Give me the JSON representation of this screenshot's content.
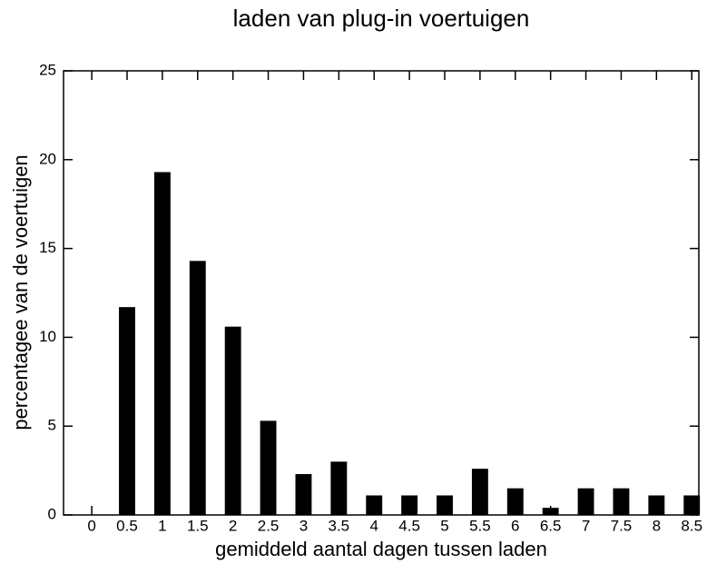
{
  "chart_data": {
    "type": "bar",
    "title": "laden van plug-in voertuigen",
    "x_label": "gemiddeld aantal dagen tussen laden",
    "y_label": "percentagee van de voertuigen",
    "x": [
      0.5,
      1,
      1.5,
      2,
      2.5,
      3,
      3.5,
      4,
      4.5,
      5,
      5.5,
      6,
      6.5,
      7,
      7.5,
      8,
      8.5
    ],
    "values": [
      11.7,
      19.3,
      14.3,
      10.6,
      5.3,
      2.3,
      3.0,
      1.1,
      1.1,
      1.1,
      2.6,
      1.5,
      0.4,
      1.5,
      1.5,
      1.1,
      1.1
    ],
    "color": "#000000",
    "xlim": [
      -0.4,
      8.6
    ],
    "xticks": [
      0,
      0.5,
      1,
      1.5,
      2,
      2.5,
      3,
      3.5,
      4,
      4.5,
      5,
      5.5,
      6,
      6.5,
      7,
      7.5,
      8,
      8.5
    ],
    "ylim": [
      0,
      25
    ],
    "yticks": [
      0,
      5,
      10,
      15,
      20,
      25
    ],
    "grid": false
  }
}
